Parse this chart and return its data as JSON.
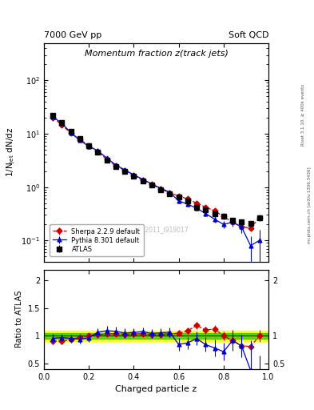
{
  "title_main": "Momentum fraction z(track jets)",
  "top_left_label": "7000 GeV pp",
  "top_right_label": "Soft QCD",
  "right_label_top": "Rivet 3.1.10, ≥ 400k events",
  "right_label_bottom": "mcplots.cern.ch [arXiv:1306.3436]",
  "watermark": "ATLAS_2011_I919017",
  "ylabel_main": "1/N$_\\mathrm{jet}$ dN/dz",
  "ylabel_ratio": "Ratio to ATLAS",
  "xlabel": "Charged particle z",
  "ylim_main": [
    0.04,
    500
  ],
  "ylim_ratio": [
    0.4,
    2.2
  ],
  "xlim": [
    0.0,
    1.0
  ],
  "atlas_x": [
    0.04,
    0.08,
    0.12,
    0.16,
    0.2,
    0.24,
    0.28,
    0.32,
    0.36,
    0.4,
    0.44,
    0.48,
    0.52,
    0.56,
    0.6,
    0.64,
    0.68,
    0.72,
    0.76,
    0.8,
    0.84,
    0.88,
    0.92,
    0.96
  ],
  "atlas_y": [
    22,
    16,
    11,
    8.0,
    6.0,
    4.5,
    3.2,
    2.4,
    2.0,
    1.6,
    1.3,
    1.1,
    0.9,
    0.75,
    0.65,
    0.55,
    0.42,
    0.38,
    0.32,
    0.28,
    0.24,
    0.22,
    0.21,
    0.27
  ],
  "atlas_yerr": [
    1.5,
    1.0,
    0.7,
    0.5,
    0.4,
    0.3,
    0.2,
    0.15,
    0.12,
    0.1,
    0.09,
    0.07,
    0.06,
    0.05,
    0.04,
    0.04,
    0.03,
    0.03,
    0.025,
    0.022,
    0.02,
    0.02,
    0.02,
    0.025
  ],
  "pythia_x": [
    0.04,
    0.08,
    0.12,
    0.16,
    0.2,
    0.24,
    0.28,
    0.32,
    0.36,
    0.4,
    0.44,
    0.48,
    0.52,
    0.56,
    0.6,
    0.64,
    0.68,
    0.72,
    0.76,
    0.8,
    0.84,
    0.88,
    0.92,
    0.96
  ],
  "pythia_y": [
    21,
    15.5,
    10.5,
    7.5,
    5.8,
    4.8,
    3.5,
    2.6,
    2.1,
    1.7,
    1.4,
    1.15,
    0.95,
    0.8,
    0.55,
    0.48,
    0.4,
    0.32,
    0.25,
    0.2,
    0.22,
    0.18,
    0.08,
    0.1
  ],
  "pythia_yerr": [
    1.5,
    1.0,
    0.7,
    0.5,
    0.4,
    0.3,
    0.25,
    0.18,
    0.15,
    0.12,
    0.1,
    0.08,
    0.07,
    0.06,
    0.06,
    0.05,
    0.04,
    0.04,
    0.035,
    0.03,
    0.04,
    0.04,
    0.04,
    0.06
  ],
  "sherpa_x": [
    0.04,
    0.08,
    0.12,
    0.16,
    0.2,
    0.24,
    0.28,
    0.32,
    0.36,
    0.4,
    0.44,
    0.48,
    0.52,
    0.56,
    0.6,
    0.64,
    0.68,
    0.72,
    0.76,
    0.8,
    0.84,
    0.88,
    0.92,
    0.96
  ],
  "sherpa_y": [
    20,
    14.5,
    10.2,
    7.8,
    6.0,
    4.6,
    3.3,
    2.5,
    2.05,
    1.65,
    1.35,
    1.12,
    0.92,
    0.78,
    0.68,
    0.6,
    0.5,
    0.42,
    0.36,
    0.28,
    0.22,
    0.18,
    0.17,
    0.27
  ],
  "sherpa_yerr": [
    1.2,
    0.8,
    0.6,
    0.45,
    0.35,
    0.25,
    0.18,
    0.14,
    0.11,
    0.09,
    0.07,
    0.06,
    0.05,
    0.04,
    0.035,
    0.03,
    0.025,
    0.022,
    0.02,
    0.018,
    0.015,
    0.014,
    0.014,
    0.022
  ],
  "ratio_pythia": [
    0.955,
    0.969,
    0.955,
    0.938,
    0.967,
    1.067,
    1.094,
    1.083,
    1.05,
    1.063,
    1.077,
    1.045,
    1.056,
    1.067,
    0.846,
    0.873,
    0.952,
    0.842,
    0.781,
    0.714,
    0.917,
    0.818,
    0.381,
    0.37
  ],
  "ratio_pythia_err": [
    0.08,
    0.07,
    0.07,
    0.07,
    0.07,
    0.07,
    0.08,
    0.08,
    0.08,
    0.08,
    0.08,
    0.08,
    0.08,
    0.09,
    0.11,
    0.11,
    0.12,
    0.13,
    0.15,
    0.16,
    0.19,
    0.21,
    0.52,
    0.27
  ],
  "ratio_sherpa": [
    0.909,
    0.906,
    0.927,
    0.975,
    1.0,
    1.022,
    1.031,
    1.042,
    1.025,
    1.031,
    1.038,
    1.018,
    1.022,
    1.04,
    1.046,
    1.091,
    1.19,
    1.105,
    1.125,
    1.0,
    0.917,
    0.818,
    0.81,
    1.0
  ],
  "ratio_sherpa_err": [
    0.06,
    0.055,
    0.055,
    0.05,
    0.045,
    0.045,
    0.045,
    0.05,
    0.05,
    0.05,
    0.05,
    0.05,
    0.05,
    0.055,
    0.055,
    0.055,
    0.065,
    0.065,
    0.075,
    0.075,
    0.085,
    0.095,
    0.105,
    0.105
  ],
  "band_x": [
    0.0,
    0.04,
    0.08,
    0.12,
    0.16,
    0.2,
    0.24,
    0.28,
    0.32,
    0.36,
    0.4,
    0.44,
    0.48,
    0.52,
    0.56,
    0.6,
    0.64,
    0.68,
    0.72,
    0.76,
    0.8,
    0.84,
    0.88,
    0.92,
    0.96,
    1.0
  ],
  "band_green_low": [
    0.95,
    0.95,
    0.95,
    0.95,
    0.95,
    0.95,
    0.95,
    0.95,
    0.95,
    0.95,
    0.95,
    0.95,
    0.95,
    0.95,
    0.95,
    0.95,
    0.95,
    0.95,
    0.95,
    0.95,
    0.95,
    0.95,
    0.95,
    0.95,
    0.95,
    0.95
  ],
  "band_green_high": [
    1.05,
    1.05,
    1.05,
    1.05,
    1.05,
    1.05,
    1.05,
    1.05,
    1.05,
    1.05,
    1.05,
    1.05,
    1.05,
    1.05,
    1.05,
    1.05,
    1.05,
    1.05,
    1.05,
    1.05,
    1.05,
    1.05,
    1.05,
    1.05,
    1.05,
    1.05
  ],
  "band_yellow_low": [
    0.9,
    0.9,
    0.9,
    0.9,
    0.9,
    0.9,
    0.9,
    0.9,
    0.9,
    0.9,
    0.9,
    0.9,
    0.9,
    0.9,
    0.9,
    0.9,
    0.9,
    0.9,
    0.9,
    0.9,
    0.9,
    0.9,
    0.9,
    0.9,
    0.9,
    0.9
  ],
  "band_yellow_high": [
    1.1,
    1.1,
    1.1,
    1.1,
    1.1,
    1.1,
    1.1,
    1.1,
    1.1,
    1.1,
    1.1,
    1.1,
    1.1,
    1.1,
    1.1,
    1.1,
    1.1,
    1.1,
    1.1,
    1.1,
    1.1,
    1.1,
    1.1,
    1.1,
    1.1,
    1.1
  ],
  "atlas_color": "#000000",
  "pythia_color": "#0000cc",
  "sherpa_color": "#cc0000"
}
